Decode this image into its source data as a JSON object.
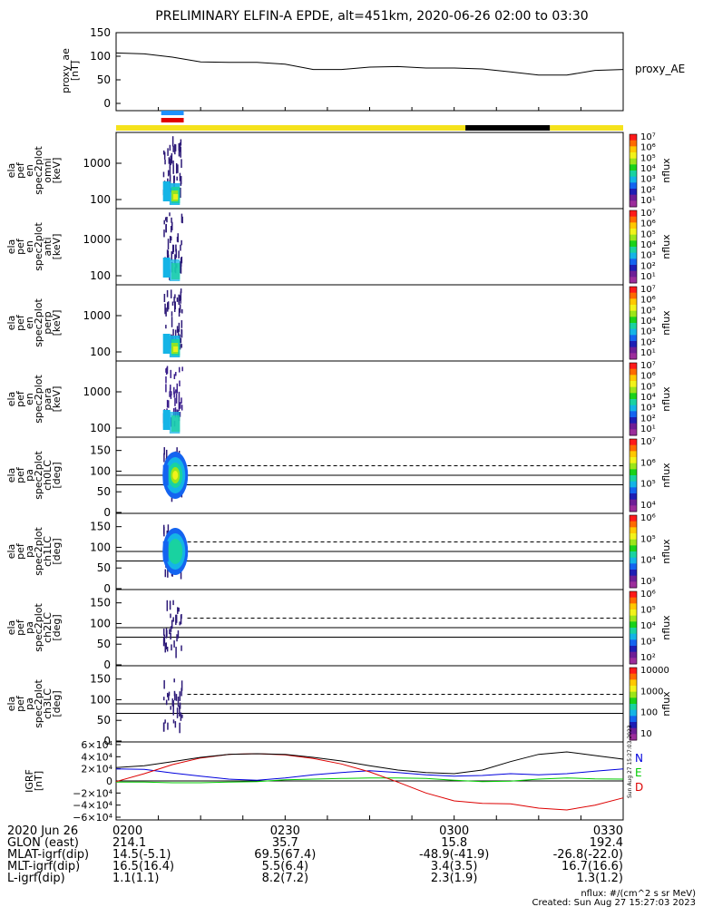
{
  "title": "PRELIMINARY ELFIN-A EPDE, alt=451km, 2020-06-26 02:00 to 03:30",
  "colors": {
    "status_yellow": "#f5e21c",
    "status_black": "#000000",
    "bar_blue": "#1e90ff",
    "bar_red": "#e00000",
    "grf_N": "#0000dd",
    "grf_E": "#00cc00",
    "grf_D": "#dd0000"
  },
  "panels": {
    "proxy_ae": {
      "ylabel": "proxy_ae [nT]",
      "ylabel_lines": [
        "proxy_ae",
        "[nT]"
      ],
      "yticks": [
        "150",
        "100",
        "50",
        "0"
      ],
      "legend": "proxy_AE"
    },
    "spectra": [
      {
        "label_lines": [
          "ela",
          "pef",
          "en",
          "spec2plot",
          "omni",
          "[keV]"
        ],
        "yticks": [
          "1000",
          "100"
        ],
        "cbar_ticks": [
          "10⁷",
          "10⁶",
          "10⁵",
          "10⁴",
          "10³",
          "10²",
          "10¹"
        ],
        "cbar_label": "nflux"
      },
      {
        "label_lines": [
          "ela",
          "pef",
          "en",
          "spec2plot",
          "anti",
          "[keV]"
        ],
        "yticks": [
          "1000",
          "100"
        ],
        "cbar_ticks": [
          "10⁷",
          "10⁶",
          "10⁵",
          "10⁴",
          "10³",
          "10²",
          "10¹"
        ],
        "cbar_label": "nflux"
      },
      {
        "label_lines": [
          "ela",
          "pef",
          "en",
          "spec2plot",
          "perp",
          "[keV]"
        ],
        "yticks": [
          "1000",
          "100"
        ],
        "cbar_ticks": [
          "10⁷",
          "10⁶",
          "10⁵",
          "10⁴",
          "10³",
          "10²",
          "10¹"
        ],
        "cbar_label": "nflux"
      },
      {
        "label_lines": [
          "ela",
          "pef",
          "en",
          "spec2plot",
          "para",
          "[keV]"
        ],
        "yticks": [
          "1000",
          "100"
        ],
        "cbar_ticks": [
          "10⁷",
          "10⁶",
          "10⁵",
          "10⁴",
          "10³",
          "10²",
          "10¹"
        ],
        "cbar_label": "nflux"
      }
    ],
    "pitch_angle": [
      {
        "label_lines": [
          "ela",
          "pef",
          "pa",
          "spec2plot",
          "ch0LC",
          "[deg]"
        ],
        "yticks": [
          "150",
          "100",
          "50",
          "0"
        ],
        "cbar_ticks": [
          "10⁷",
          "10⁶",
          "10⁵",
          "10⁴"
        ],
        "cbar_label": "nflux"
      },
      {
        "label_lines": [
          "ela",
          "pef",
          "pa",
          "spec2plot",
          "ch1LC",
          "[deg]"
        ],
        "yticks": [
          "150",
          "100",
          "50",
          "0"
        ],
        "cbar_ticks": [
          "10⁶",
          "10⁵",
          "10⁴",
          "10³"
        ],
        "cbar_label": "nflux"
      },
      {
        "label_lines": [
          "ela",
          "pef",
          "pa",
          "spec2plot",
          "ch2LC",
          "[deg]"
        ],
        "yticks": [
          "150",
          "100",
          "50",
          "0"
        ],
        "cbar_ticks": [
          "10⁶",
          "10⁵",
          "10⁴",
          "10³",
          "10²"
        ],
        "cbar_label": "nflux"
      },
      {
        "label_lines": [
          "ela",
          "pef",
          "pa",
          "spec2plot",
          "ch3LC",
          "[deg]"
        ],
        "yticks": [
          "150",
          "100",
          "50",
          "0"
        ],
        "cbar_ticks": [
          "10000",
          "1000",
          "100",
          "10"
        ],
        "cbar_label": "nflux"
      }
    ],
    "igrf": {
      "ylabel_lines": [
        "IGRF",
        "[nT]"
      ],
      "yticks": [
        "6×10⁴",
        "4×10⁴",
        "2×10⁴",
        "0",
        "−2×10⁴",
        "−4×10⁴",
        "−6×10⁴"
      ],
      "legend": [
        "N",
        "E",
        "D"
      ],
      "side_stamp": "Sun Aug 27 15:27:03 2023"
    }
  },
  "footer": {
    "rows": [
      {
        "label": "2020 Jun 26",
        "values": [
          "0200",
          "0230",
          "0300",
          "0330"
        ]
      },
      {
        "label": "GLON (east)",
        "values": [
          "214.1",
          "35.7",
          "15.8",
          "192.4"
        ]
      },
      {
        "label": "MLAT-igrf(dip)",
        "values": [
          "14.5(-5.1)",
          "69.5(67.4)",
          "-48.9(-41.9)",
          "-26.8(-22.0)"
        ]
      },
      {
        "label": "MLT-igrf(dip)",
        "values": [
          "16.5(16.4)",
          "5.5(6.4)",
          "3.4(3.5)",
          "16.7(16.6)"
        ]
      },
      {
        "label": "L-igrf(dip)",
        "values": [
          "1.1(1.1)",
          "8.2(7.2)",
          "2.3(1.9)",
          "1.3(1.2)"
        ]
      }
    ],
    "units_note": "nflux: #/(cm^2 s sr MeV)",
    "created": "Created: Sun Aug 27 15:27:03 2023"
  },
  "chart_data": [
    {
      "type": "line",
      "name": "proxy_ae",
      "x_unit": "UT (2020-06-26)",
      "x": [
        "02:00",
        "02:05",
        "02:10",
        "02:15",
        "02:20",
        "02:25",
        "02:30",
        "02:35",
        "02:40",
        "02:45",
        "02:50",
        "02:55",
        "03:00",
        "03:05",
        "03:10",
        "03:15",
        "03:20",
        "03:25",
        "03:30"
      ],
      "series": [
        {
          "name": "proxy_AE",
          "values": [
            107,
            105,
            98,
            88,
            87,
            87,
            83,
            72,
            72,
            77,
            78,
            75,
            75,
            73,
            67,
            60,
            60,
            70,
            72
          ]
        }
      ],
      "ylim": [
        0,
        155
      ]
    },
    {
      "type": "status_bar",
      "segments": [
        {
          "start": "02:00",
          "end": "03:02",
          "color": "yellow"
        },
        {
          "start": "03:02",
          "end": "03:17",
          "color": "black"
        },
        {
          "start": "03:17",
          "end": "03:30",
          "color": "yellow"
        }
      ],
      "science_markers": [
        {
          "start": "02:08",
          "end": "02:12",
          "color": "blue"
        },
        {
          "start": "02:08",
          "end": "02:12",
          "color": "red"
        }
      ]
    },
    {
      "type": "heatmap",
      "name": "energy spectrograms (omni, anti, perp, para)",
      "x_range": [
        "02:08",
        "02:12"
      ],
      "y_scale": "log",
      "y_unit": "keV"
    },
    {
      "type": "heatmap",
      "name": "pitch-angle spectrograms (ch0LC–ch3LC)",
      "x_range": [
        "02:08",
        "02:12"
      ],
      "ylim": [
        0,
        180
      ],
      "y_unit": "deg",
      "reference_lines_deg": [
        90,
        67,
        113
      ]
    },
    {
      "type": "line",
      "name": "IGRF",
      "x": [
        "02:00",
        "02:05",
        "02:10",
        "02:15",
        "02:20",
        "02:25",
        "02:30",
        "02:35",
        "02:40",
        "02:45",
        "02:50",
        "02:55",
        "03:00",
        "03:05",
        "03:10",
        "03:15",
        "03:20",
        "03:25",
        "03:30"
      ],
      "series": [
        {
          "name": "N",
          "values": [
            20000,
            19000,
            13000,
            8000,
            3000,
            1000,
            5000,
            10000,
            14000,
            17000,
            14000,
            10000,
            8000,
            9000,
            12000,
            10000,
            12000,
            16000,
            20000
          ]
        },
        {
          "name": "E",
          "values": [
            -2000,
            -2000,
            -3000,
            -3000,
            -2000,
            -1000,
            2000,
            3000,
            4000,
            5000,
            5000,
            4000,
            1000,
            -1000,
            -500,
            3000,
            5000,
            3500,
            3000
          ]
        },
        {
          "name": "D",
          "values": [
            -1000,
            12000,
            27000,
            38000,
            44000,
            45000,
            43000,
            37000,
            28000,
            15000,
            -2000,
            -20000,
            -33000,
            -37000,
            -38000,
            -45000,
            -48000,
            -40000,
            -28000
          ]
        },
        {
          "name": "total",
          "values": [
            22000,
            25000,
            32000,
            39000,
            44000,
            45000,
            44000,
            39000,
            33000,
            25000,
            18000,
            14000,
            12000,
            18000,
            32000,
            44000,
            48000,
            42000,
            36000
          ]
        }
      ],
      "ylim": [
        -60000,
        60000
      ]
    }
  ]
}
